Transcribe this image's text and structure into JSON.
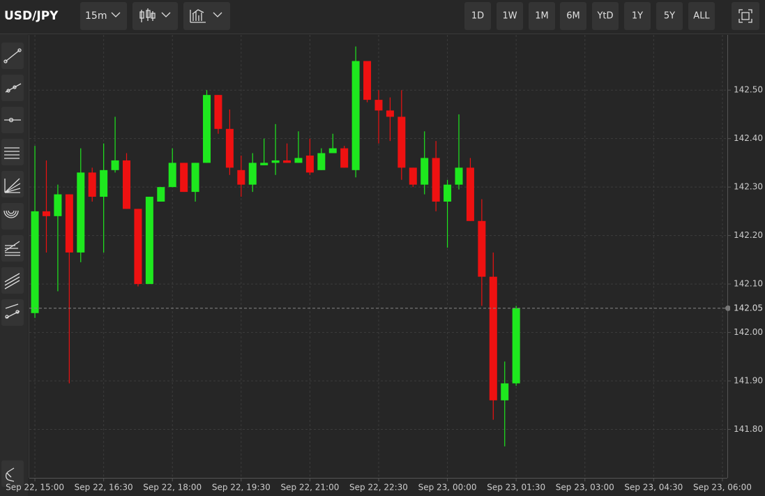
{
  "toolbar": {
    "symbol": "USD/JPY",
    "interval": "15m",
    "ranges": [
      "1D",
      "1W",
      "1M",
      "6M",
      "YtD",
      "1Y",
      "5Y",
      "ALL"
    ]
  },
  "chart_data": {
    "type": "candlestick",
    "x": [
      0,
      1,
      2,
      3,
      4,
      5,
      6,
      7,
      8,
      9,
      10,
      11,
      12,
      13,
      14,
      15,
      16,
      17,
      18,
      19,
      20,
      21,
      22,
      23,
      24,
      25,
      26,
      27,
      28,
      29,
      30,
      31,
      32,
      33,
      34,
      35,
      36,
      37,
      38,
      39,
      40,
      41,
      42
    ],
    "open": [
      142.04,
      142.25,
      142.24,
      142.285,
      142.165,
      142.33,
      142.28,
      142.335,
      142.355,
      142.255,
      142.1,
      142.27,
      142.3,
      142.35,
      142.29,
      142.35,
      142.49,
      142.42,
      142.335,
      142.305,
      142.345,
      142.35,
      142.355,
      142.35,
      142.365,
      142.335,
      142.37,
      142.38,
      142.335,
      142.56,
      142.48,
      142.458,
      142.445,
      142.34,
      142.305,
      142.36,
      142.27,
      142.305,
      142.34,
      142.23,
      142.115,
      141.86,
      141.895
    ],
    "high": [
      142.385,
      142.355,
      142.305,
      142.285,
      142.38,
      142.34,
      142.39,
      142.445,
      142.37,
      142.255,
      142.28,
      142.3,
      142.38,
      142.35,
      142.35,
      142.5,
      142.49,
      142.46,
      142.365,
      142.37,
      142.4,
      142.43,
      142.39,
      142.415,
      142.4,
      142.38,
      142.41,
      142.385,
      142.59,
      142.56,
      142.5,
      142.485,
      142.5,
      142.34,
      142.415,
      142.395,
      142.315,
      142.45,
      142.36,
      142.275,
      142.165,
      141.94,
      142.055
    ],
    "low": [
      142.03,
      142.165,
      142.085,
      141.895,
      142.145,
      142.27,
      142.165,
      142.33,
      142.255,
      142.095,
      142.1,
      142.27,
      142.3,
      142.29,
      142.27,
      142.35,
      142.41,
      142.325,
      142.28,
      142.29,
      142.345,
      142.325,
      142.35,
      142.35,
      142.325,
      142.335,
      142.37,
      142.34,
      142.32,
      142.475,
      142.39,
      142.395,
      142.315,
      142.3,
      142.285,
      142.25,
      142.175,
      142.295,
      142.23,
      142.055,
      141.82,
      141.765,
      141.89
    ],
    "close": [
      142.25,
      142.24,
      142.285,
      142.165,
      142.33,
      142.28,
      142.335,
      142.355,
      142.255,
      142.1,
      142.28,
      142.3,
      142.35,
      142.29,
      142.35,
      142.49,
      142.42,
      142.34,
      142.305,
      142.35,
      142.35,
      142.355,
      142.35,
      142.36,
      142.33,
      142.37,
      142.38,
      142.34,
      142.56,
      142.48,
      142.458,
      142.445,
      142.34,
      142.305,
      142.36,
      142.27,
      142.305,
      142.34,
      142.23,
      142.115,
      141.86,
      141.895,
      142.05
    ],
    "up_color": "#1ee81e",
    "down_color": "#ee1111",
    "xlim": [
      -0.49,
      60.43
    ],
    "xticks": [
      {
        "value": 0,
        "label": "Sep 22, 15:00"
      },
      {
        "value": 6,
        "label": "Sep 22, 16:30"
      },
      {
        "value": 12,
        "label": "Sep 22, 18:00"
      },
      {
        "value": 18,
        "label": "Sep 22, 19:30"
      },
      {
        "value": 24,
        "label": "Sep 22, 21:00"
      },
      {
        "value": 30,
        "label": "Sep 22, 22:30"
      },
      {
        "value": 36,
        "label": "Sep 23, 00:00"
      },
      {
        "value": 42,
        "label": "Sep 23, 01:30"
      },
      {
        "value": 48,
        "label": "Sep 23, 03:00"
      },
      {
        "value": 54,
        "label": "Sep 23, 04:30"
      },
      {
        "value": 60,
        "label": "Sep 23, 06:00"
      }
    ],
    "ylim": [
      141.7,
      142.614
    ],
    "yticks": [
      {
        "value": 141.8,
        "label": "141.80"
      },
      {
        "value": 141.9,
        "label": "141.90"
      },
      {
        "value": 142,
        "label": "142.00"
      },
      {
        "value": 142.1,
        "label": "142.10"
      },
      {
        "value": 142.2,
        "label": "142.20"
      },
      {
        "value": 142.3,
        "label": "142.30"
      },
      {
        "value": 142.4,
        "label": "142.40"
      },
      {
        "value": 142.5,
        "label": "142.50"
      }
    ],
    "current_price": 142.05,
    "grid": true
  }
}
